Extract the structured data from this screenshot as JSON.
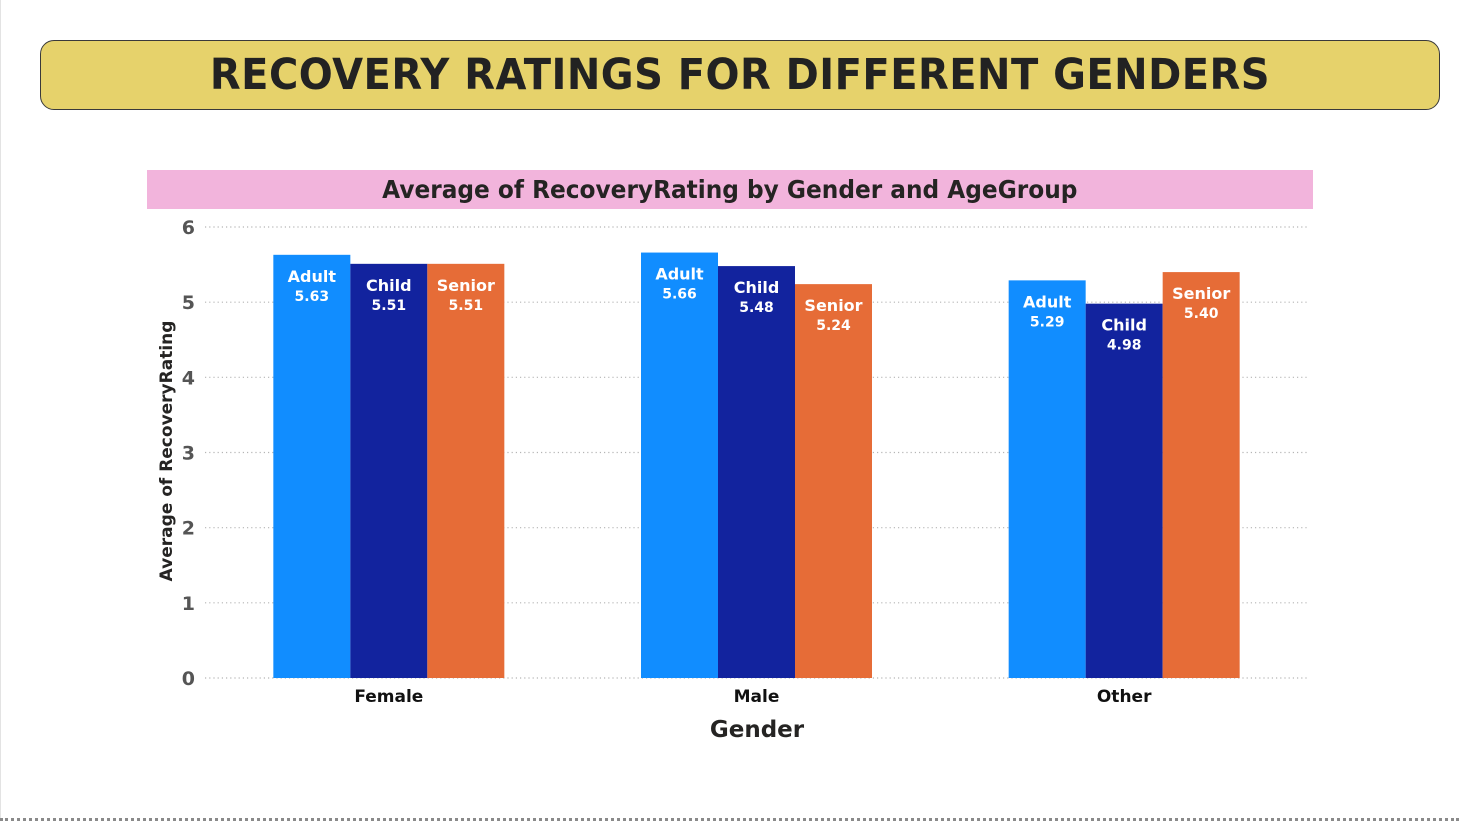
{
  "banner": {
    "title": "RECOVERY RATINGS FOR DIFFERENT GENDERS"
  },
  "colors": {
    "banner_bg": "#e6d26b",
    "title_bar_bg": "#f2b4dc",
    "Adult": "#118dff",
    "Child": "#12239e",
    "Senior": "#e66c37"
  },
  "chart_data": {
    "type": "bar",
    "title": "Average of RecoveryRating by Gender and AgeGroup",
    "xlabel": "Gender",
    "ylabel": "Average of RecoveryRating",
    "categories": [
      "Female",
      "Male",
      "Other"
    ],
    "series": [
      {
        "name": "Adult",
        "values": [
          5.63,
          5.66,
          5.29
        ]
      },
      {
        "name": "Child",
        "values": [
          5.51,
          5.48,
          4.98
        ]
      },
      {
        "name": "Senior",
        "values": [
          5.51,
          5.24,
          5.4
        ]
      }
    ],
    "value_labels": [
      [
        "5.63",
        "5.66",
        "5.29"
      ],
      [
        "5.51",
        "5.48",
        "4.98"
      ],
      [
        "5.51",
        "5.24",
        "5.40"
      ]
    ],
    "ylim": [
      0,
      6
    ],
    "yticks": [
      "0",
      "1",
      "2",
      "3",
      "4",
      "5",
      "6"
    ],
    "grid": true,
    "legend": "none"
  }
}
